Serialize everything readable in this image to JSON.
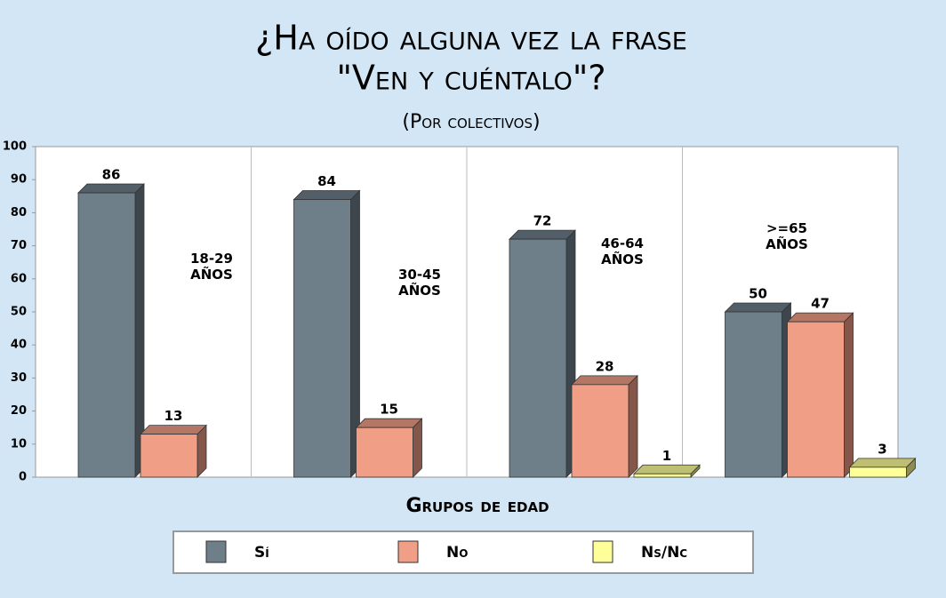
{
  "chart_data": {
    "type": "bar",
    "title": [
      "¿Ha oído alguna vez la frase",
      "\"Ven y cuéntalo\"?"
    ],
    "subtitle": "(Por colectivos)",
    "x_label": "Grupos de edad",
    "categories": [
      "18-29 AÑOS",
      "30-45 AÑOS",
      "46-64 AÑOS",
      ">=65 AÑOS"
    ],
    "series": [
      {
        "name": "Sí",
        "color": "#6f7f8a",
        "values": [
          86,
          84,
          72,
          50
        ]
      },
      {
        "name": "No",
        "color": "#f09e86",
        "values": [
          13,
          15,
          28,
          47
        ]
      },
      {
        "name": "Ns/Nc",
        "color": "#ffff99",
        "values": [
          null,
          null,
          1,
          3
        ]
      }
    ],
    "ylim": [
      0,
      100
    ],
    "yticks": [
      0,
      10,
      20,
      30,
      40,
      50,
      60,
      70,
      80,
      90,
      100
    ],
    "legend": "bottom"
  }
}
